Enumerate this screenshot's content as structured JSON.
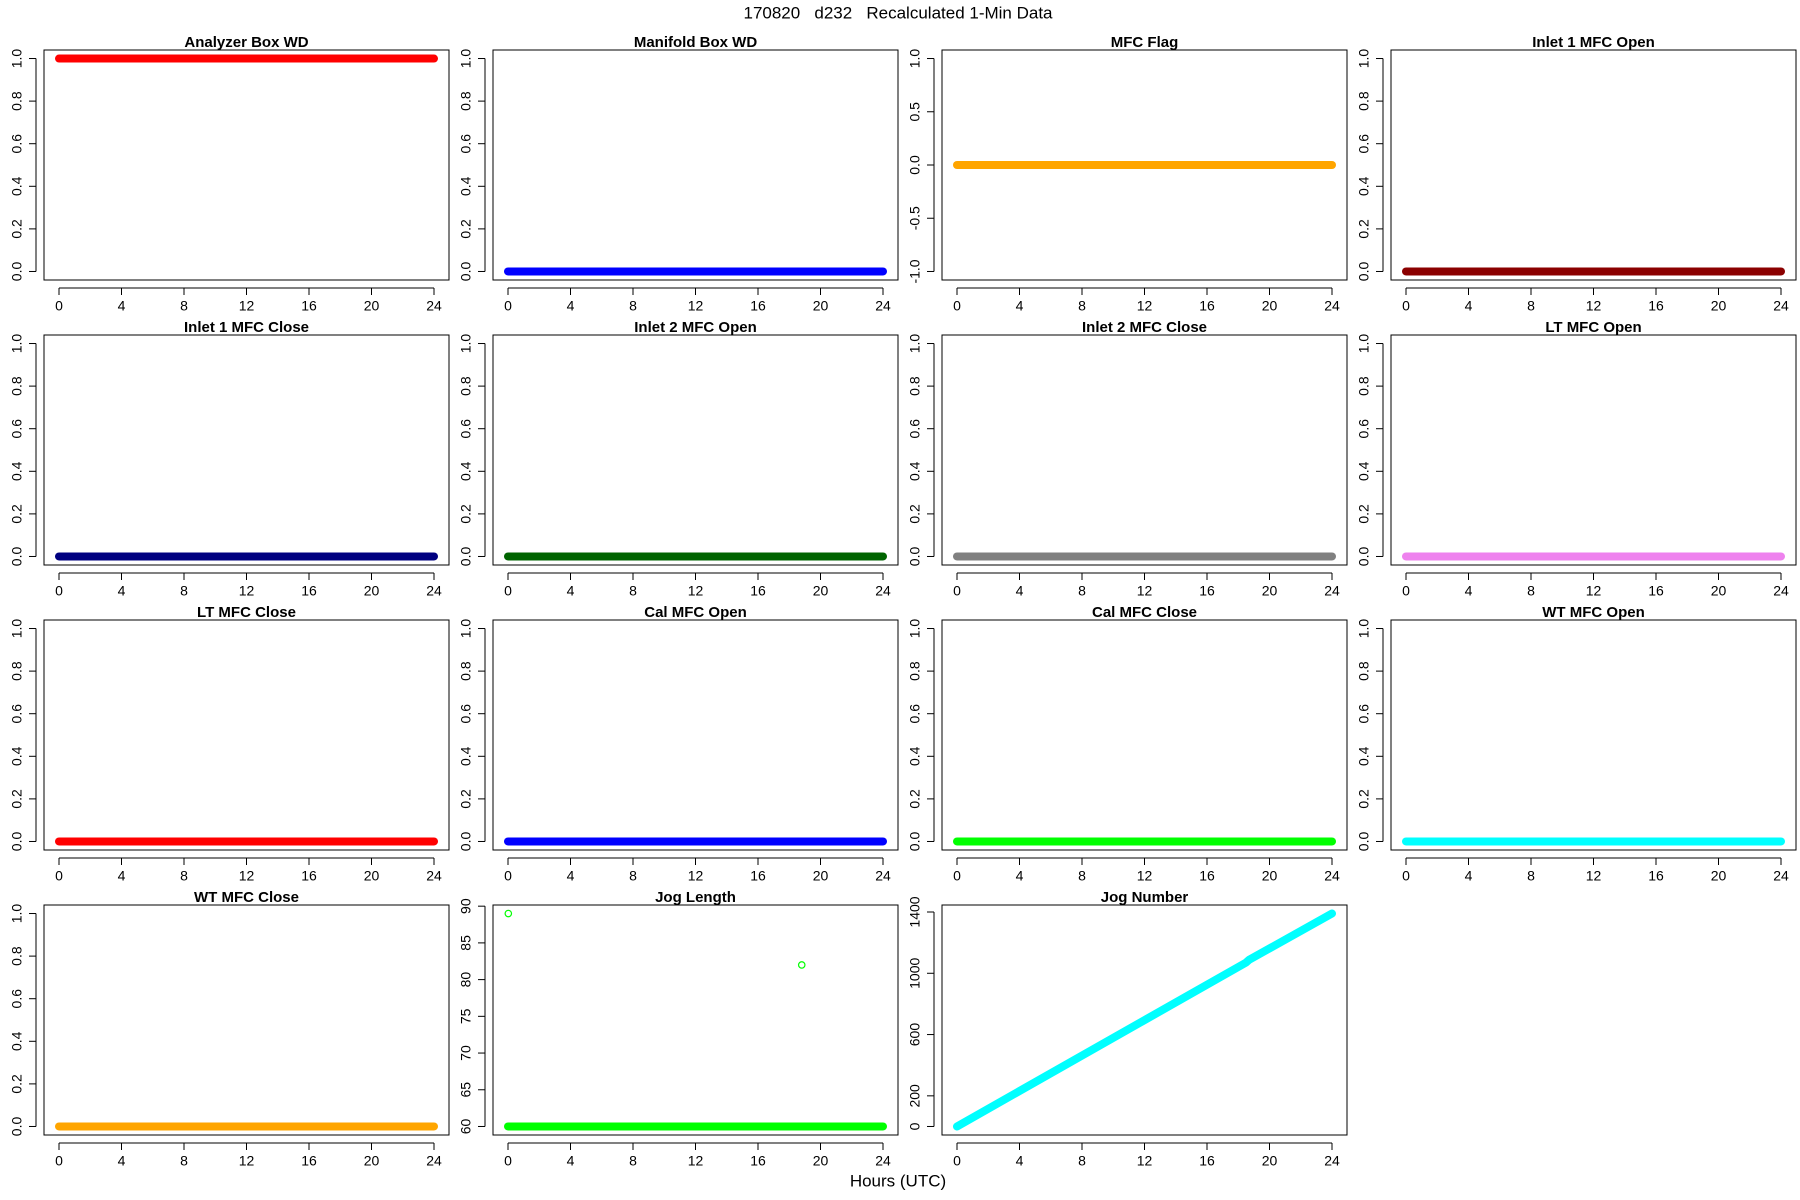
{
  "title": "170820   d232   Recalculated 1-Min Data",
  "xlabel": "Hours (UTC)",
  "chart_data": [
    {
      "type": "line",
      "title": "Analyzer Box WD",
      "xlim": [
        -0.96,
        24.96
      ],
      "xticks": [
        0,
        4,
        8,
        12,
        16,
        20,
        24
      ],
      "ylim": [
        -0.04,
        1.04
      ],
      "yticks": [
        {
          "value": 0,
          "label": "0.0"
        },
        {
          "value": 0.2,
          "label": "0.2"
        },
        {
          "value": 0.4,
          "label": "0.4"
        },
        {
          "value": 0.6,
          "label": "0.6"
        },
        {
          "value": 0.8,
          "label": "0.8"
        },
        {
          "value": 1,
          "label": "1.0"
        }
      ],
      "series": [
        {
          "color": "#ff0000",
          "style": "thick",
          "x": [
            0,
            24
          ],
          "values": [
            1,
            1
          ]
        }
      ]
    },
    {
      "type": "line",
      "title": "Manifold Box WD",
      "xlim": [
        -0.96,
        24.96
      ],
      "xticks": [
        0,
        4,
        8,
        12,
        16,
        20,
        24
      ],
      "ylim": [
        -0.04,
        1.04
      ],
      "yticks": [
        {
          "value": 0,
          "label": "0.0"
        },
        {
          "value": 0.2,
          "label": "0.2"
        },
        {
          "value": 0.4,
          "label": "0.4"
        },
        {
          "value": 0.6,
          "label": "0.6"
        },
        {
          "value": 0.8,
          "label": "0.8"
        },
        {
          "value": 1,
          "label": "1.0"
        }
      ],
      "series": [
        {
          "color": "#0000ff",
          "style": "thick",
          "x": [
            0,
            24
          ],
          "values": [
            0,
            0
          ]
        }
      ]
    },
    {
      "type": "line",
      "title": "MFC Flag",
      "xlim": [
        -0.96,
        24.96
      ],
      "xticks": [
        0,
        4,
        8,
        12,
        16,
        20,
        24
      ],
      "ylim": [
        -1.08,
        1.08
      ],
      "yticks": [
        {
          "value": -1,
          "label": "-1.0"
        },
        {
          "value": -0.5,
          "label": "-0.5"
        },
        {
          "value": 0,
          "label": "0.0"
        },
        {
          "value": 0.5,
          "label": "0.5"
        },
        {
          "value": 1,
          "label": "1.0"
        }
      ],
      "series": [
        {
          "color": "#ffa500",
          "style": "thick",
          "x": [
            0,
            24
          ],
          "values": [
            0,
            0
          ]
        }
      ]
    },
    {
      "type": "line",
      "title": "Inlet 1 MFC Open",
      "xlim": [
        -0.96,
        24.96
      ],
      "xticks": [
        0,
        4,
        8,
        12,
        16,
        20,
        24
      ],
      "ylim": [
        -0.04,
        1.04
      ],
      "yticks": [
        {
          "value": 0,
          "label": "0.0"
        },
        {
          "value": 0.2,
          "label": "0.2"
        },
        {
          "value": 0.4,
          "label": "0.4"
        },
        {
          "value": 0.6,
          "label": "0.6"
        },
        {
          "value": 0.8,
          "label": "0.8"
        },
        {
          "value": 1,
          "label": "1.0"
        }
      ],
      "series": [
        {
          "color": "#8b0000",
          "style": "thick",
          "x": [
            0,
            24
          ],
          "values": [
            0,
            0
          ]
        }
      ]
    },
    {
      "type": "line",
      "title": "Inlet 1 MFC Close",
      "xlim": [
        -0.96,
        24.96
      ],
      "xticks": [
        0,
        4,
        8,
        12,
        16,
        20,
        24
      ],
      "ylim": [
        -0.04,
        1.04
      ],
      "yticks": [
        {
          "value": 0,
          "label": "0.0"
        },
        {
          "value": 0.2,
          "label": "0.2"
        },
        {
          "value": 0.4,
          "label": "0.4"
        },
        {
          "value": 0.6,
          "label": "0.6"
        },
        {
          "value": 0.8,
          "label": "0.8"
        },
        {
          "value": 1,
          "label": "1.0"
        }
      ],
      "series": [
        {
          "color": "#000080",
          "style": "thick",
          "x": [
            0,
            24
          ],
          "values": [
            0,
            0
          ]
        }
      ]
    },
    {
      "type": "line",
      "title": "Inlet 2 MFC Open",
      "xlim": [
        -0.96,
        24.96
      ],
      "xticks": [
        0,
        4,
        8,
        12,
        16,
        20,
        24
      ],
      "ylim": [
        -0.04,
        1.04
      ],
      "yticks": [
        {
          "value": 0,
          "label": "0.0"
        },
        {
          "value": 0.2,
          "label": "0.2"
        },
        {
          "value": 0.4,
          "label": "0.4"
        },
        {
          "value": 0.6,
          "label": "0.6"
        },
        {
          "value": 0.8,
          "label": "0.8"
        },
        {
          "value": 1,
          "label": "1.0"
        }
      ],
      "series": [
        {
          "color": "#006400",
          "style": "thick",
          "x": [
            0,
            24
          ],
          "values": [
            0,
            0
          ]
        }
      ]
    },
    {
      "type": "line",
      "title": "Inlet 2 MFC Close",
      "xlim": [
        -0.96,
        24.96
      ],
      "xticks": [
        0,
        4,
        8,
        12,
        16,
        20,
        24
      ],
      "ylim": [
        -0.04,
        1.04
      ],
      "yticks": [
        {
          "value": 0,
          "label": "0.0"
        },
        {
          "value": 0.2,
          "label": "0.2"
        },
        {
          "value": 0.4,
          "label": "0.4"
        },
        {
          "value": 0.6,
          "label": "0.6"
        },
        {
          "value": 0.8,
          "label": "0.8"
        },
        {
          "value": 1,
          "label": "1.0"
        }
      ],
      "series": [
        {
          "color": "#808080",
          "style": "thick",
          "x": [
            0,
            24
          ],
          "values": [
            0,
            0
          ]
        }
      ]
    },
    {
      "type": "line",
      "title": "LT MFC Open",
      "xlim": [
        -0.96,
        24.96
      ],
      "xticks": [
        0,
        4,
        8,
        12,
        16,
        20,
        24
      ],
      "ylim": [
        -0.04,
        1.04
      ],
      "yticks": [
        {
          "value": 0,
          "label": "0.0"
        },
        {
          "value": 0.2,
          "label": "0.2"
        },
        {
          "value": 0.4,
          "label": "0.4"
        },
        {
          "value": 0.6,
          "label": "0.6"
        },
        {
          "value": 0.8,
          "label": "0.8"
        },
        {
          "value": 1,
          "label": "1.0"
        }
      ],
      "series": [
        {
          "color": "#ee82ee",
          "style": "thick",
          "x": [
            0,
            24
          ],
          "values": [
            0,
            0
          ]
        }
      ]
    },
    {
      "type": "line",
      "title": "LT MFC Close",
      "xlim": [
        -0.96,
        24.96
      ],
      "xticks": [
        0,
        4,
        8,
        12,
        16,
        20,
        24
      ],
      "ylim": [
        -0.04,
        1.04
      ],
      "yticks": [
        {
          "value": 0,
          "label": "0.0"
        },
        {
          "value": 0.2,
          "label": "0.2"
        },
        {
          "value": 0.4,
          "label": "0.4"
        },
        {
          "value": 0.6,
          "label": "0.6"
        },
        {
          "value": 0.8,
          "label": "0.8"
        },
        {
          "value": 1,
          "label": "1.0"
        }
      ],
      "series": [
        {
          "color": "#ff0000",
          "style": "thick",
          "x": [
            0,
            24
          ],
          "values": [
            0,
            0
          ]
        }
      ]
    },
    {
      "type": "line",
      "title": "Cal MFC Open",
      "xlim": [
        -0.96,
        24.96
      ],
      "xticks": [
        0,
        4,
        8,
        12,
        16,
        20,
        24
      ],
      "ylim": [
        -0.04,
        1.04
      ],
      "yticks": [
        {
          "value": 0,
          "label": "0.0"
        },
        {
          "value": 0.2,
          "label": "0.2"
        },
        {
          "value": 0.4,
          "label": "0.4"
        },
        {
          "value": 0.6,
          "label": "0.6"
        },
        {
          "value": 0.8,
          "label": "0.8"
        },
        {
          "value": 1,
          "label": "1.0"
        }
      ],
      "series": [
        {
          "color": "#0000ff",
          "style": "thick",
          "x": [
            0,
            24
          ],
          "values": [
            0,
            0
          ]
        }
      ]
    },
    {
      "type": "line",
      "title": "Cal MFC Close",
      "xlim": [
        -0.96,
        24.96
      ],
      "xticks": [
        0,
        4,
        8,
        12,
        16,
        20,
        24
      ],
      "ylim": [
        -0.04,
        1.04
      ],
      "yticks": [
        {
          "value": 0,
          "label": "0.0"
        },
        {
          "value": 0.2,
          "label": "0.2"
        },
        {
          "value": 0.4,
          "label": "0.4"
        },
        {
          "value": 0.6,
          "label": "0.6"
        },
        {
          "value": 0.8,
          "label": "0.8"
        },
        {
          "value": 1,
          "label": "1.0"
        }
      ],
      "series": [
        {
          "color": "#00ff00",
          "style": "thick",
          "x": [
            0,
            24
          ],
          "values": [
            0,
            0
          ]
        }
      ]
    },
    {
      "type": "line",
      "title": "WT MFC Open",
      "xlim": [
        -0.96,
        24.96
      ],
      "xticks": [
        0,
        4,
        8,
        12,
        16,
        20,
        24
      ],
      "ylim": [
        -0.04,
        1.04
      ],
      "yticks": [
        {
          "value": 0,
          "label": "0.0"
        },
        {
          "value": 0.2,
          "label": "0.2"
        },
        {
          "value": 0.4,
          "label": "0.4"
        },
        {
          "value": 0.6,
          "label": "0.6"
        },
        {
          "value": 0.8,
          "label": "0.8"
        },
        {
          "value": 1,
          "label": "1.0"
        }
      ],
      "series": [
        {
          "color": "#00ffff",
          "style": "thick",
          "x": [
            0,
            24
          ],
          "values": [
            0,
            0
          ]
        }
      ]
    },
    {
      "type": "line",
      "title": "WT MFC Close",
      "xlim": [
        -0.96,
        24.96
      ],
      "xticks": [
        0,
        4,
        8,
        12,
        16,
        20,
        24
      ],
      "ylim": [
        -0.04,
        1.04
      ],
      "yticks": [
        {
          "value": 0,
          "label": "0.0"
        },
        {
          "value": 0.2,
          "label": "0.2"
        },
        {
          "value": 0.4,
          "label": "0.4"
        },
        {
          "value": 0.6,
          "label": "0.6"
        },
        {
          "value": 0.8,
          "label": "0.8"
        },
        {
          "value": 1,
          "label": "1.0"
        }
      ],
      "series": [
        {
          "color": "#ffa500",
          "style": "thick",
          "x": [
            0,
            24
          ],
          "values": [
            0,
            0
          ]
        }
      ]
    },
    {
      "type": "line",
      "title": "Jog Length",
      "xlim": [
        -0.96,
        24.96
      ],
      "xticks": [
        0,
        4,
        8,
        12,
        16,
        20,
        24
      ],
      "ylim": [
        58.84,
        90.16
      ],
      "yticks": [
        60,
        65,
        70,
        75,
        80,
        85,
        90
      ],
      "series": [
        {
          "color": "#00ff00",
          "style": "thick",
          "x": [
            0,
            24
          ],
          "values": [
            60,
            60
          ]
        },
        {
          "color": "#00ff00",
          "style": "points",
          "x": [
            0.02,
            18.8
          ],
          "values": [
            89,
            82
          ]
        }
      ]
    },
    {
      "type": "line",
      "title": "Jog Number",
      "xlim": [
        -0.96,
        24.96
      ],
      "xticks": [
        0,
        4,
        8,
        12,
        16,
        20,
        24
      ],
      "ylim": [
        -55.6,
        1445.6
      ],
      "yticks": [
        0,
        200,
        600,
        1000,
        1400
      ],
      "series": [
        {
          "color": "#00ffff",
          "style": "thick",
          "x": [
            0,
            18.5,
            18.7,
            24
          ],
          "values": [
            0,
            1070,
            1088,
            1390
          ]
        }
      ]
    }
  ]
}
